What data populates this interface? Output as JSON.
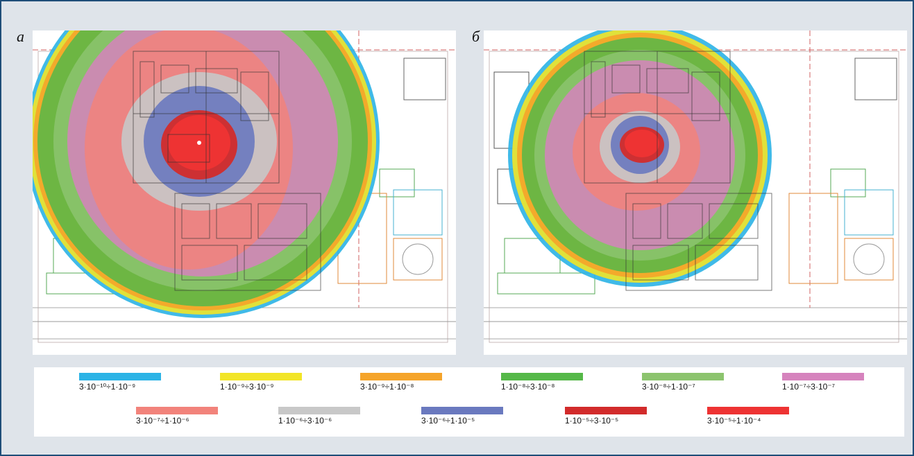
{
  "panels": [
    {
      "label": "a"
    },
    {
      "label": "б"
    }
  ],
  "legend": {
    "items": [
      {
        "color": "#2bb3e6",
        "label": "3·10⁻¹⁰÷1·10⁻⁹"
      },
      {
        "color": "#f2e527",
        "label": "1·10⁻⁹÷3·10⁻⁹"
      },
      {
        "color": "#f5a42a",
        "label": "3·10⁻⁹÷1·10⁻⁸"
      },
      {
        "color": "#55b848",
        "label": "1·10⁻⁸÷3·10⁻⁸"
      },
      {
        "color": "#8cc46e",
        "label": "3·10⁻⁸÷1·10⁻⁷"
      },
      {
        "color": "#d683bd",
        "label": "1·10⁻⁷÷3·10⁻⁷"
      },
      {
        "color": "#f2837b",
        "label": "3·10⁻⁷÷1·10⁻⁶"
      },
      {
        "color": "#c8c8c8",
        "label": "1·10⁻⁶÷3·10⁻⁶"
      },
      {
        "color": "#6a79bf",
        "label": "3·10⁻⁶÷1·10⁻⁵"
      },
      {
        "color": "#d22b2b",
        "label": "1·10⁻⁵÷3·10⁻⁵"
      },
      {
        "color": "#ee3333",
        "label": "3·10⁻⁵÷1·10⁻⁴"
      }
    ]
  }
}
